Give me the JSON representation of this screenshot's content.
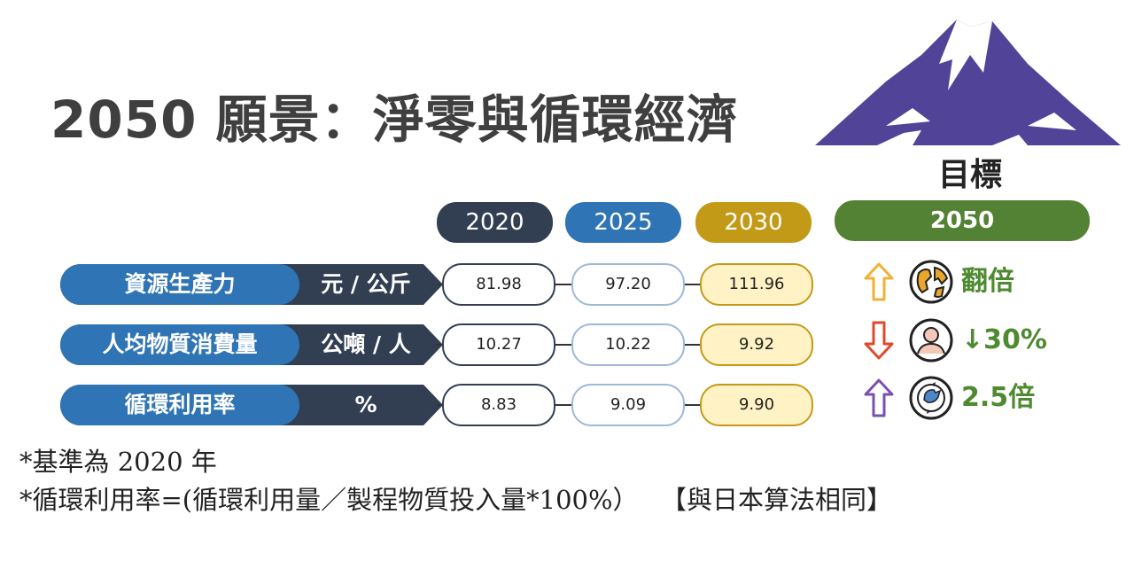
{
  "title": "2050 願景：淨零與循環經濟",
  "goal": {
    "label": "目標",
    "year": "2050"
  },
  "years": [
    "2020",
    "2025",
    "2030"
  ],
  "metrics": [
    {
      "name": "資源生產力",
      "unit": "元 / 公斤",
      "v2020": "81.98",
      "v2025": "97.20",
      "v2030": "111.96",
      "goal_direction": "up",
      "goal_icon": "globe-icon",
      "goal_text": "翻倍"
    },
    {
      "name": "人均物質消費量",
      "unit": "公噸 / 人",
      "v2020": "10.27",
      "v2025": "10.22",
      "v2030": "9.92",
      "goal_direction": "down",
      "goal_icon": "person-icon",
      "goal_text": "↓30%"
    },
    {
      "name": "循環利用率",
      "unit": "%",
      "v2020": "8.83",
      "v2025": "9.09",
      "v2030": "9.90",
      "goal_direction": "up",
      "goal_icon": "recycle-icon",
      "goal_text": "2.5倍"
    }
  ],
  "notes": {
    "line1": "*基準為 2020 年",
    "line2": "*循環利用率=(循環利用量／製程物質投入量*100%）",
    "line2_bracket": "【與日本算法相同】"
  },
  "colors": {
    "navy": "#323f53",
    "blue": "#2f74b5",
    "gold": "#c39a17",
    "green": "#548235",
    "mountain": "#514398",
    "up_arrow_1": "#f2b134",
    "down_arrow": "#e2492b",
    "up_arrow_3": "#7b4fb0"
  }
}
